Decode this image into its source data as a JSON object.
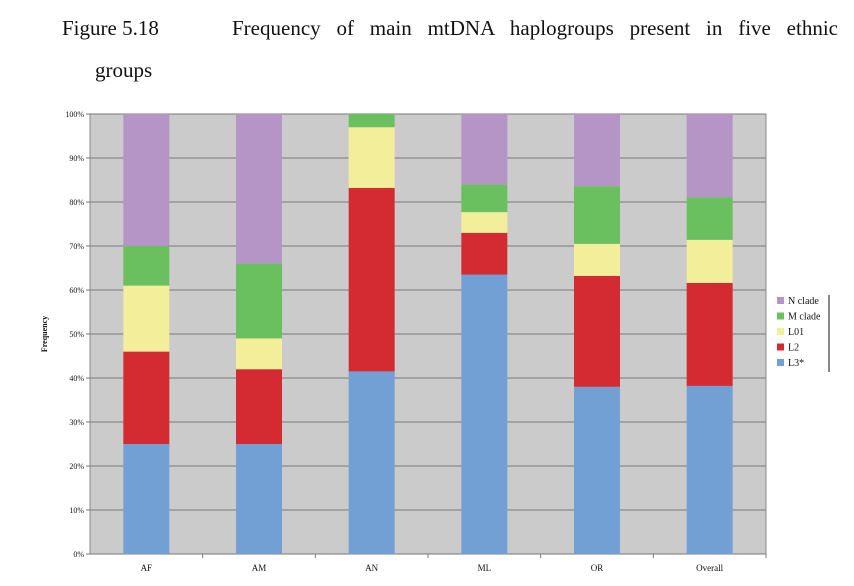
{
  "caption": {
    "figure": "Figure 5.18",
    "title_line1": "Frequency of main mtDNA haplogroups present in five ethnic",
    "title_line2": "groups"
  },
  "chart_data": {
    "type": "bar",
    "stacked": true,
    "normalized_percent": true,
    "title": "Frequency of main mtDNA haplogroups present in five ethnic groups",
    "xlabel": "",
    "ylabel": "Frequency",
    "ylim": [
      0,
      100
    ],
    "yticks": [
      "0%",
      "10%",
      "20%",
      "30%",
      "40%",
      "50%",
      "60%",
      "70%",
      "80%",
      "90%",
      "100%"
    ],
    "grid": true,
    "legend_position": "right",
    "categories": [
      "AF",
      "AM",
      "AN",
      "ML",
      "OR",
      "Overall"
    ],
    "series": [
      {
        "name": "L3*",
        "color": "#729fd4",
        "values": [
          25,
          25,
          41.5,
          63.5,
          38,
          38.2
        ]
      },
      {
        "name": "L2",
        "color": "#d42a32",
        "values": [
          21,
          17,
          41.7,
          9.5,
          25.2,
          23.4
        ]
      },
      {
        "name": "L01",
        "color": "#f3ee9a",
        "values": [
          15,
          7,
          13.8,
          4.7,
          7.3,
          9.8
        ]
      },
      {
        "name": "M clade",
        "color": "#6abf5e",
        "values": [
          9,
          17,
          3,
          6.3,
          13.1,
          9.7
        ]
      },
      {
        "name": "N clade",
        "color": "#b594c6",
        "values": [
          30,
          34,
          0,
          16,
          16.4,
          18.9
        ]
      }
    ]
  }
}
